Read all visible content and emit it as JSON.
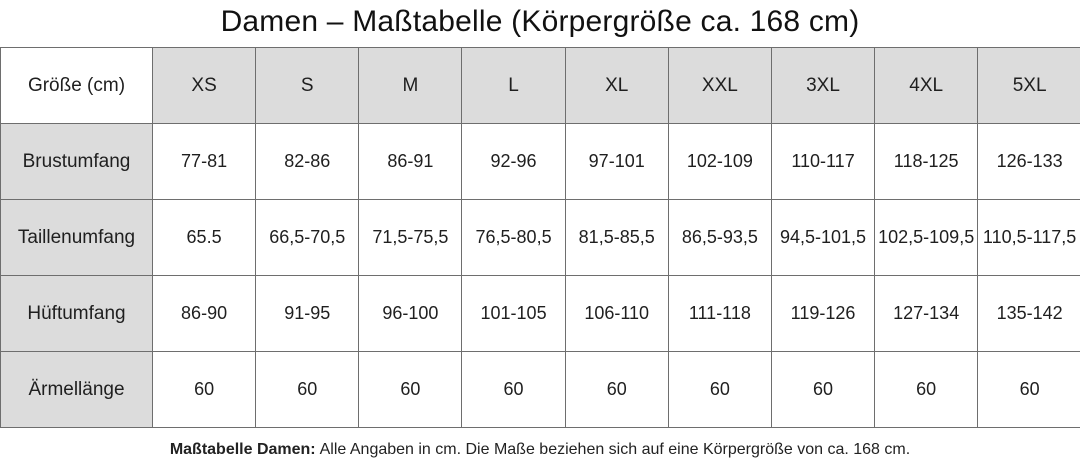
{
  "title": "Damen – Maßtabelle (Körpergröße ca. 168 cm)",
  "table": {
    "corner_label": "Größe (cm)",
    "columns": [
      "XS",
      "S",
      "M",
      "L",
      "XL",
      "XXL",
      "3XL",
      "4XL",
      "5XL"
    ],
    "rows": [
      {
        "label": "Brustumfang",
        "values": [
          "77-81",
          "82-86",
          "86-91",
          "92-96",
          "97-101",
          "102-109",
          "110-117",
          "118-125",
          "126-133"
        ]
      },
      {
        "label": "Taillenumfang",
        "values": [
          "65.5",
          "66,5-70,5",
          "71,5-75,5",
          "76,5-80,5",
          "81,5-85,5",
          "86,5-93,5",
          "94,5-101,5",
          "102,5-109,5",
          "110,5-117,5"
        ]
      },
      {
        "label": "Hüftumfang",
        "values": [
          "86-90",
          "91-95",
          "96-100",
          "101-105",
          "106-110",
          "111-118",
          "119-126",
          "127-134",
          "135-142"
        ]
      },
      {
        "label": "Ärmellänge",
        "values": [
          "60",
          "60",
          "60",
          "60",
          "60",
          "60",
          "60",
          "60",
          "60"
        ]
      }
    ]
  },
  "footer": {
    "bold_label": "Maßtabelle Damen:",
    "text": "Alle Angaben in cm. Die Maße beziehen sich auf eine Körpergröße von ca. 168 cm."
  },
  "colors": {
    "header_fill": "#dcdcdc",
    "row_label_fill": "#dcdcdc",
    "border": "#6e6e6e",
    "text": "#1f1f1f",
    "background": "#ffffff"
  }
}
